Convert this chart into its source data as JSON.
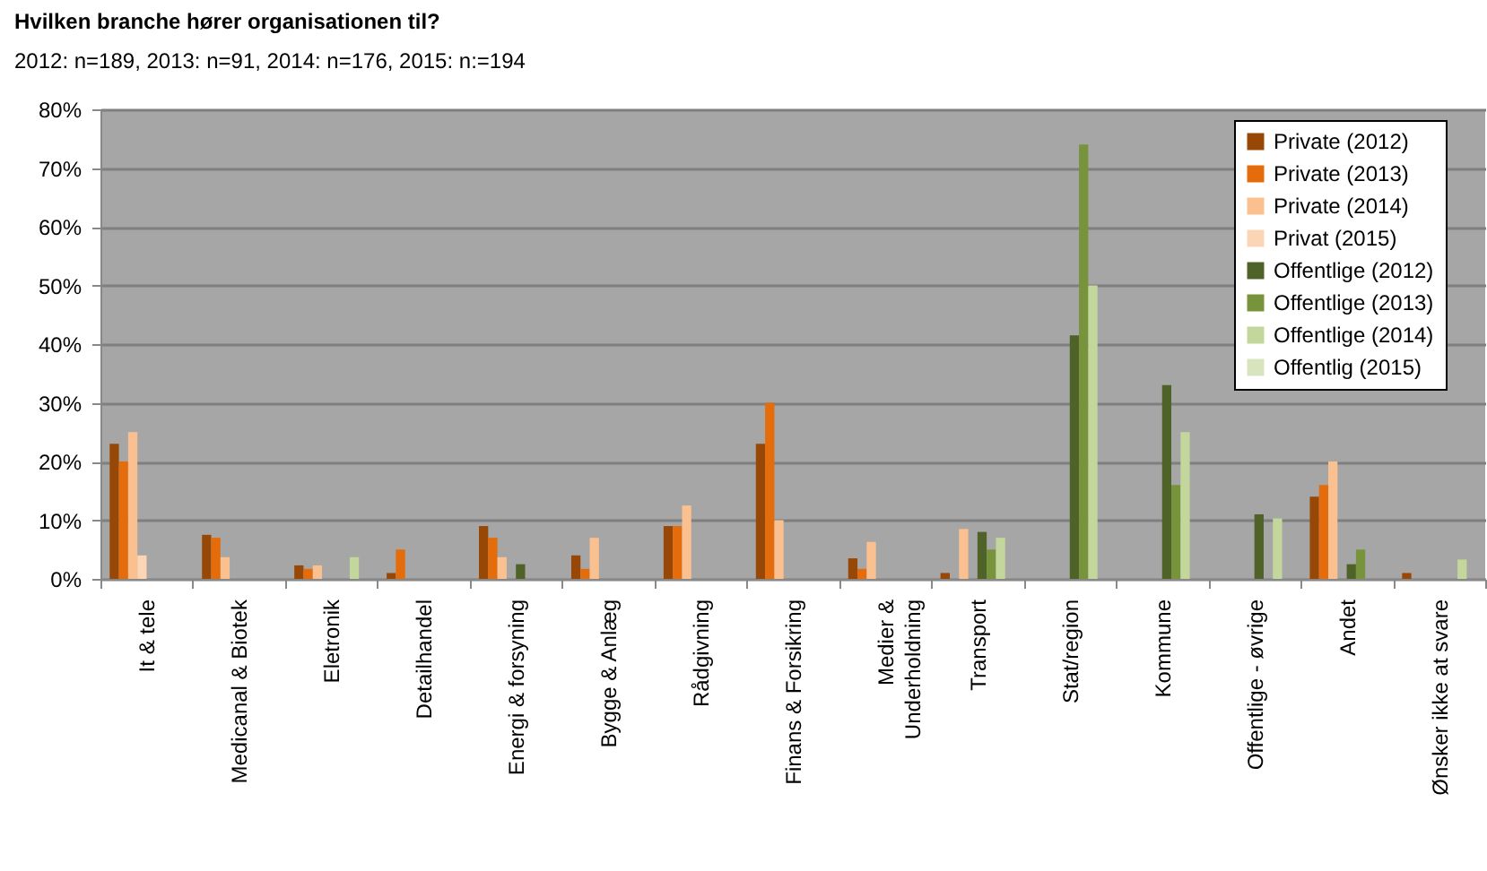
{
  "chart_data": {
    "type": "bar",
    "title": "Hvilken branche hører organisationen til?",
    "subtitle": "2012: n=189, 2013: n=91, 2014: n=176, 2015: n:=194",
    "categories": [
      "It & tele",
      "Medicanal & Biotek",
      "Eletronik",
      "Detailhandel",
      "Energi & forsyning",
      "Bygge & Anlæg",
      "Rådgivning",
      "Finans & Forsikring",
      "Medier & Underholdning",
      "Transport",
      "Stat/region",
      "Kommune",
      "Offentlige - øvrige",
      "Andet",
      "Ønsker ikke at svare"
    ],
    "series": [
      {
        "name": "Private (2012)",
        "color": "#974706",
        "values": [
          23,
          7.5,
          2.3,
          1,
          9,
          4,
          9,
          23,
          3.5,
          1,
          0,
          0,
          0,
          14,
          1
        ]
      },
      {
        "name": "Private (2013)",
        "color": "#e46c0a",
        "values": [
          20,
          7,
          1.7,
          5,
          7,
          1.7,
          9,
          30,
          1.7,
          0,
          0,
          0,
          0,
          16,
          0
        ]
      },
      {
        "name": "Private (2014)",
        "color": "#fac090",
        "values": [
          25,
          3.7,
          2.3,
          0,
          3.7,
          7,
          12.5,
          10,
          6.3,
          8.5,
          0,
          0,
          0,
          20,
          0
        ]
      },
      {
        "name": "Privat (2015)",
        "color": "#fcd5b5",
        "values": [
          4,
          0,
          0,
          0,
          0,
          0,
          0,
          0,
          0,
          0,
          0,
          0,
          0,
          0,
          0
        ]
      },
      {
        "name": "Offentlige (2012)",
        "color": "#4f6228",
        "values": [
          0,
          0,
          0,
          0,
          2.5,
          0,
          0,
          0,
          0,
          8,
          41.5,
          33,
          11,
          2.5,
          0
        ]
      },
      {
        "name": "Offentlige (2013)",
        "color": "#77933c",
        "values": [
          0,
          0,
          0,
          0,
          0,
          0,
          0,
          0,
          0,
          5,
          74,
          16,
          0,
          5,
          0
        ]
      },
      {
        "name": "Offentlige (2014)",
        "color": "#c3d69b",
        "values": [
          0,
          0,
          3.7,
          0,
          0,
          0,
          0,
          0,
          0,
          7,
          50,
          25,
          10.3,
          0,
          3.3
        ]
      },
      {
        "name": "Offentlig (2015)",
        "color": "#d7e4bd",
        "values": [
          0,
          0,
          0,
          0,
          0,
          0,
          0,
          0,
          0,
          0,
          0,
          0,
          0,
          0,
          0
        ]
      }
    ],
    "ylim": [
      0,
      80
    ],
    "yticks": [
      {
        "value": 0,
        "label": "0%"
      },
      {
        "value": 10,
        "label": "10%"
      },
      {
        "value": 20,
        "label": "20%"
      },
      {
        "value": 30,
        "label": "30%"
      },
      {
        "value": 40,
        "label": "40%"
      },
      {
        "value": 50,
        "label": "50%"
      },
      {
        "value": 60,
        "label": "60%"
      },
      {
        "value": 70,
        "label": "70%"
      },
      {
        "value": 80,
        "label": "80%"
      }
    ],
    "grid": "y",
    "legend": "top right"
  }
}
